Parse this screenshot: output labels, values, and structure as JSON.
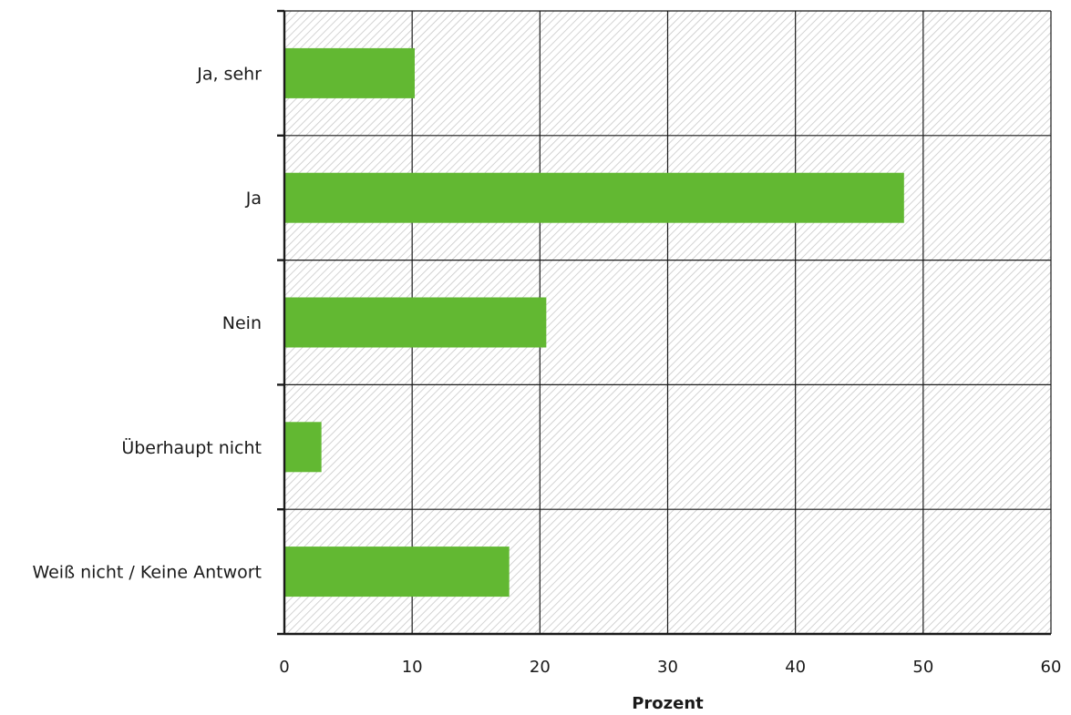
{
  "chart_data": {
    "type": "bar",
    "orientation": "horizontal",
    "categories": [
      "Ja, sehr",
      "Ja",
      "Nein",
      "Überhaupt nicht",
      "Weiß nicht / Keine Antwort"
    ],
    "values": [
      10.2,
      48.5,
      20.5,
      2.9,
      17.6
    ],
    "title": "",
    "xlabel": "Prozent",
    "ylabel": "",
    "xlim": [
      0,
      60
    ],
    "xticks": [
      0,
      10,
      20,
      30,
      40,
      50,
      60
    ],
    "xtick_labels": [
      "0",
      "10",
      "20",
      "30",
      "40",
      "50",
      "60"
    ],
    "grid": true,
    "plot_background": "hatched light gray",
    "colors": {
      "bar": "#62b832",
      "grid": "#1a1a1a",
      "hatch": "#c8c8c8"
    }
  }
}
